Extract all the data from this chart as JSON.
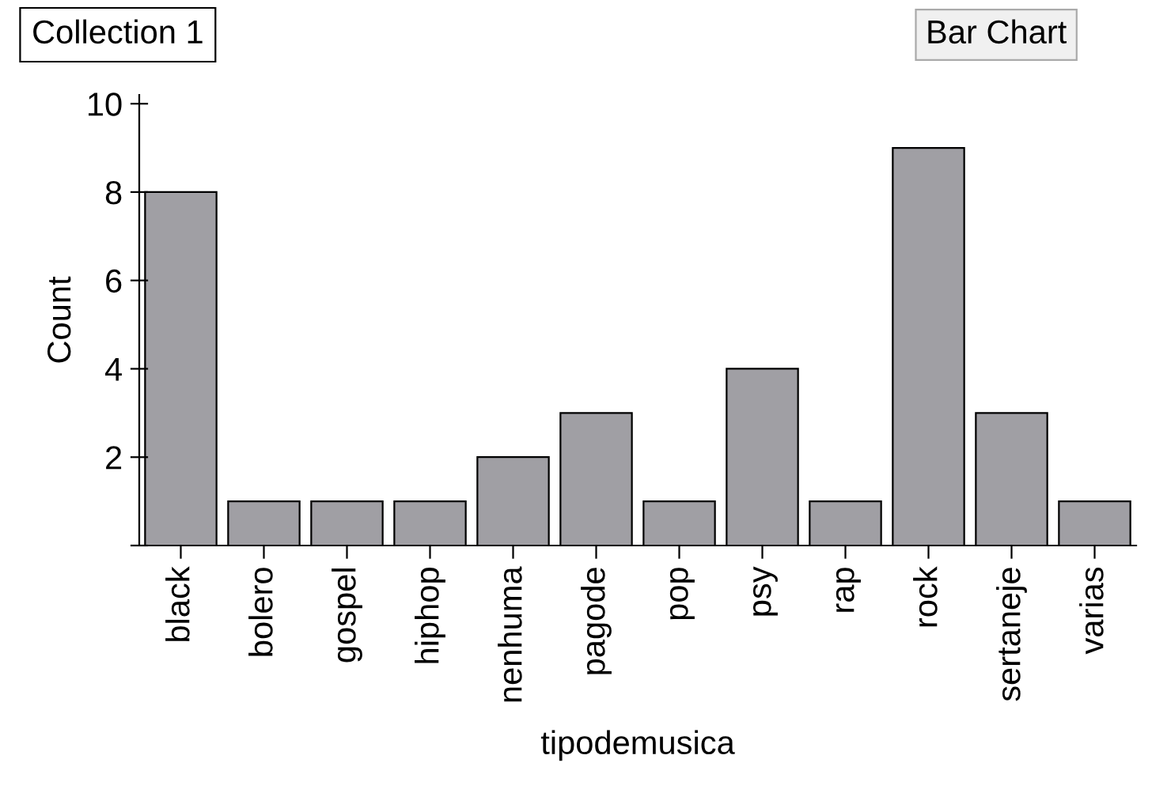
{
  "chart_data": {
    "type": "bar",
    "title": "Collection 1",
    "xlabel": "tipodemusica",
    "ylabel": "Count",
    "annotations": [
      "Bar Chart"
    ],
    "categories": [
      "black",
      "bolero",
      "gospel",
      "hiphop",
      "nenhuma",
      "pagode",
      "pop",
      "psy",
      "rap",
      "rock",
      "sertaneje",
      "varias"
    ],
    "values": [
      8,
      1,
      1,
      1,
      2,
      3,
      1,
      4,
      1,
      9,
      3,
      1
    ],
    "color": "#a09fa4",
    "ylim": [
      0,
      10.2
    ],
    "yticks": [
      {
        "value": 0,
        "label": null
      },
      2,
      4,
      6,
      8,
      10
    ],
    "grid": false,
    "legend": false
  }
}
